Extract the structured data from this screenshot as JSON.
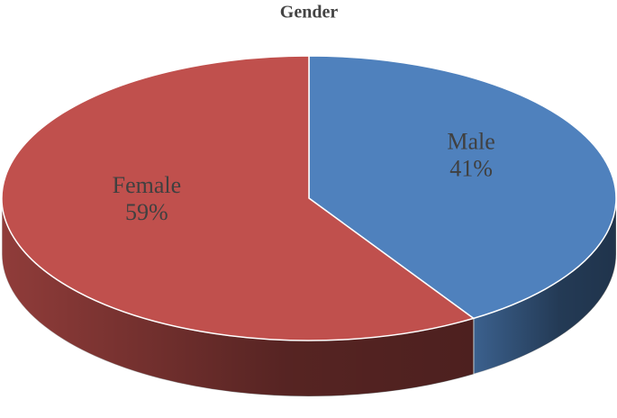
{
  "chart_data": {
    "type": "pie",
    "title": "Gender",
    "categories": [
      "Male",
      "Female"
    ],
    "values": [
      41,
      59
    ],
    "value_labels": [
      "41%",
      "59%"
    ],
    "colors": [
      "#4f81bd",
      "#c0504d"
    ]
  }
}
